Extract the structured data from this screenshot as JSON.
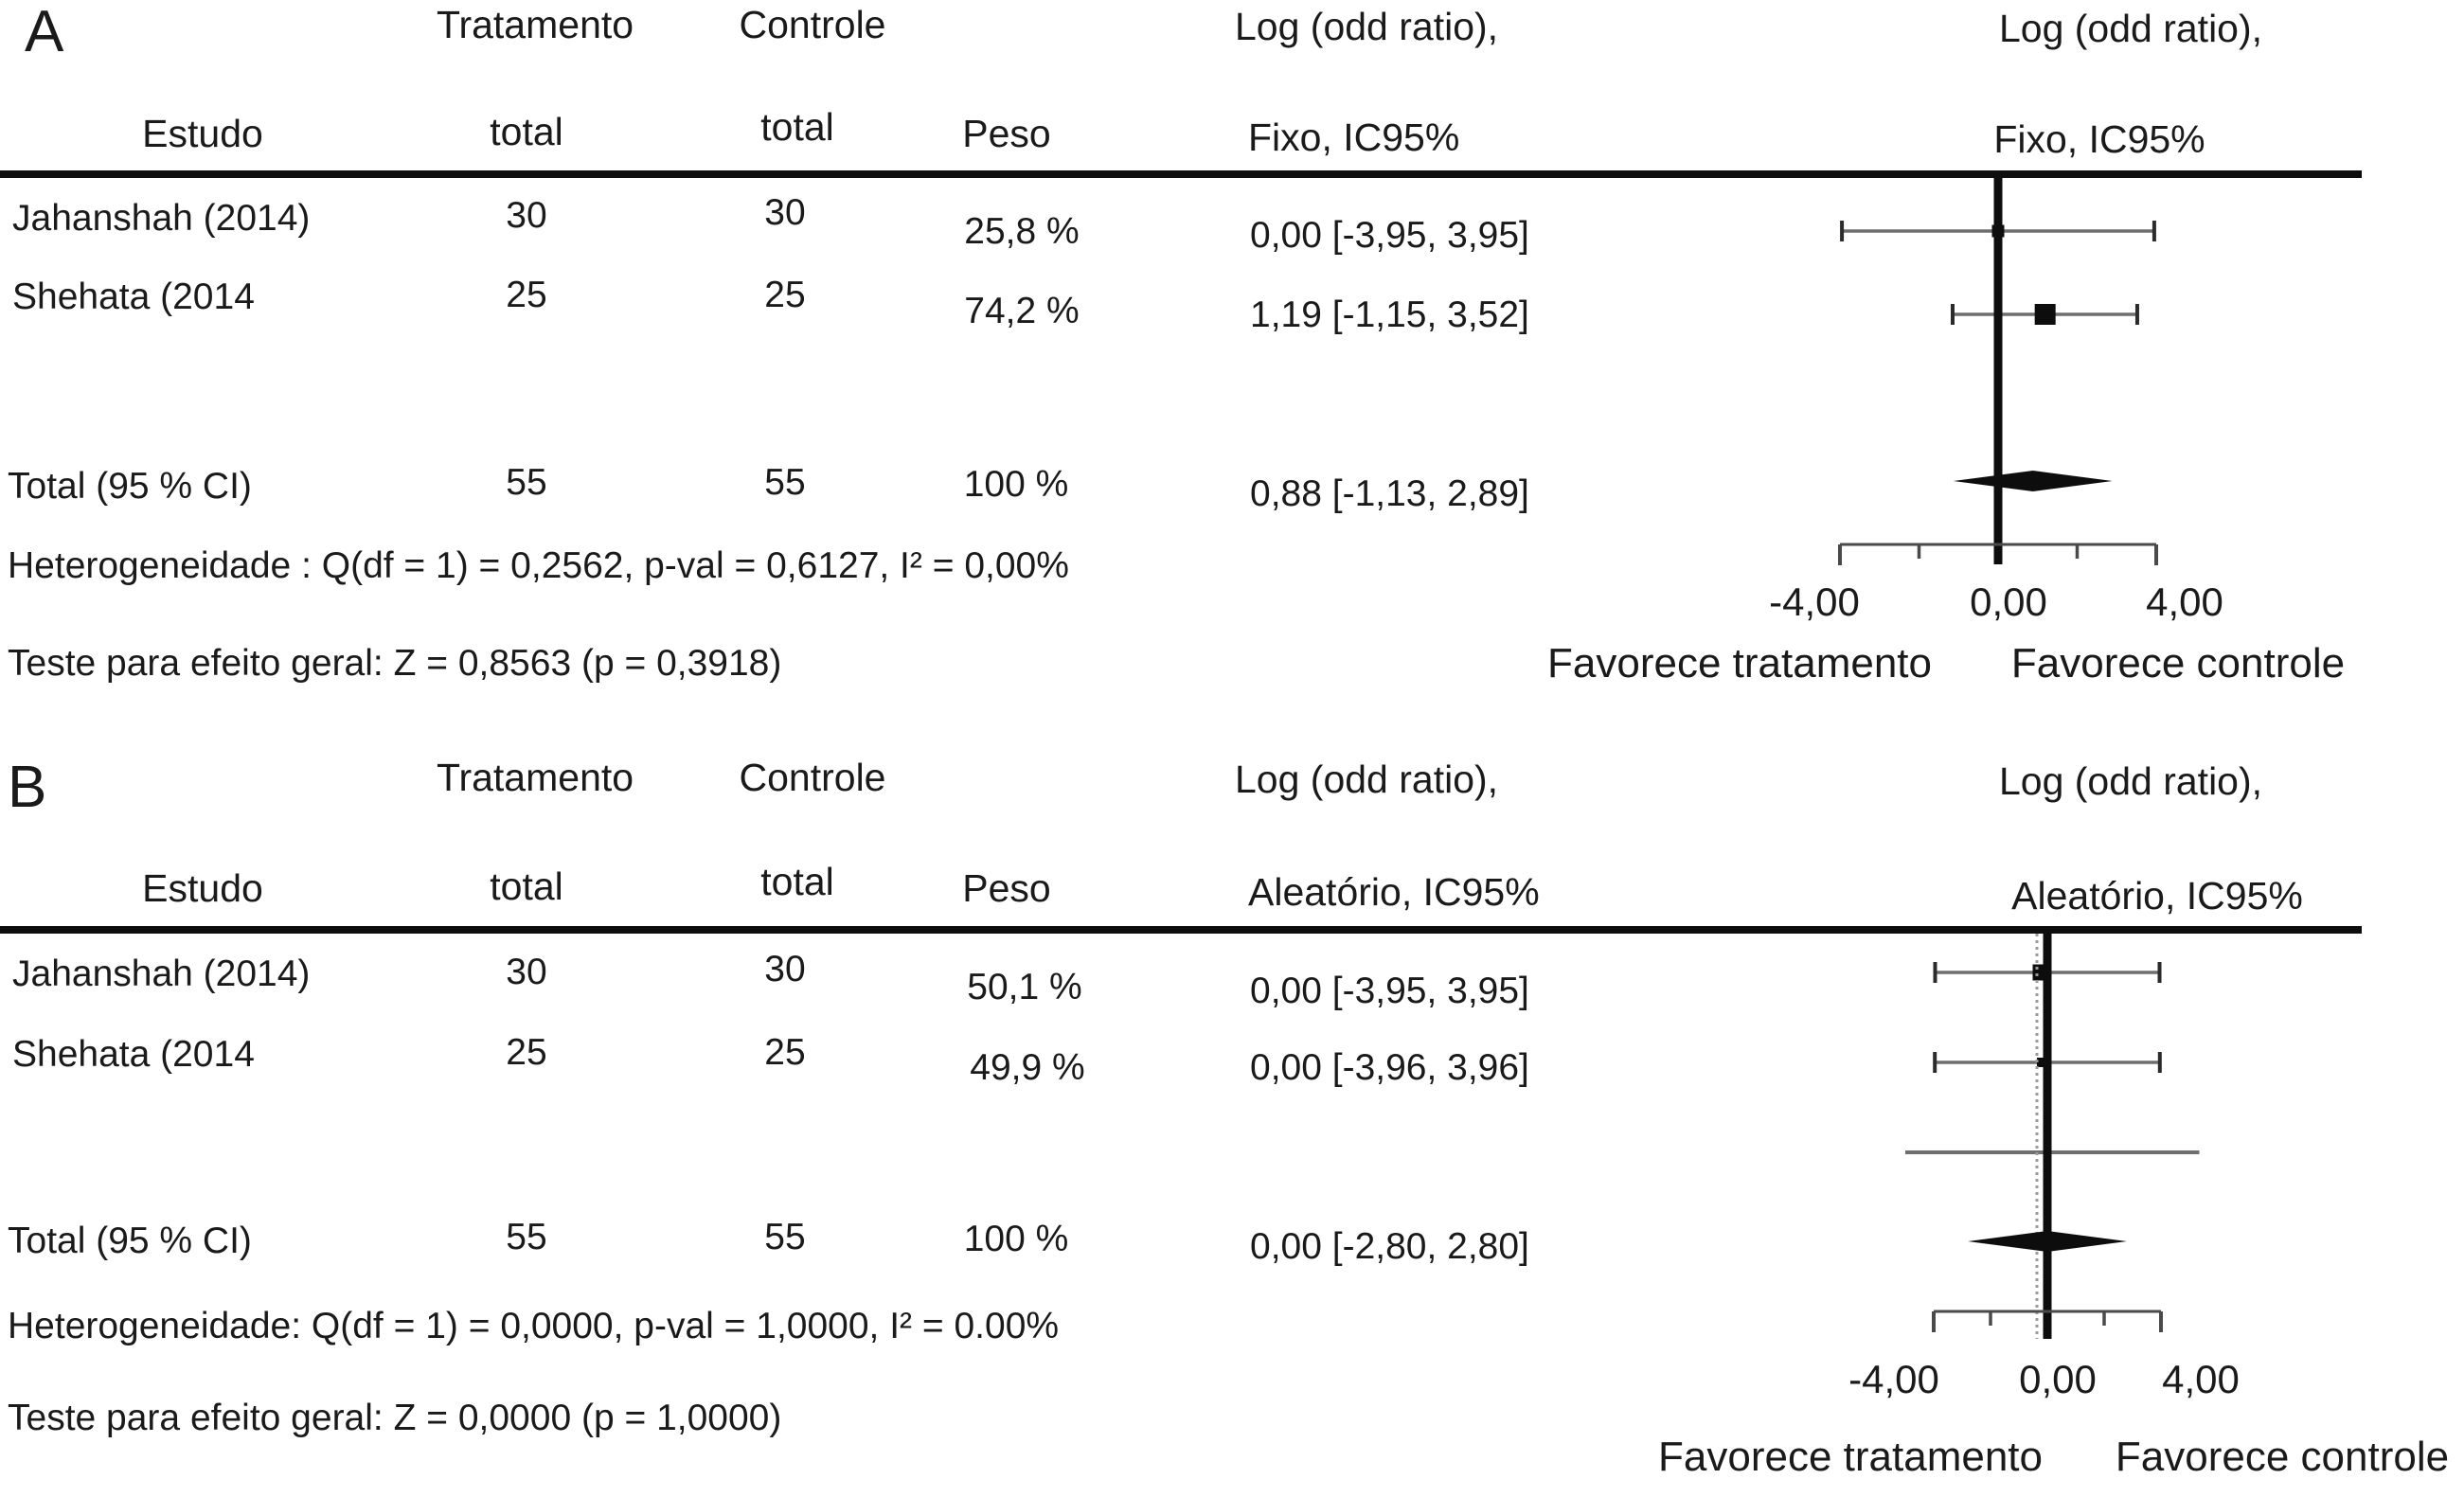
{
  "panels": [
    {
      "label": "A",
      "header": {
        "treatment": "Tratamento",
        "control": "Controle",
        "effect_left_line1": "Log (odd ratio),",
        "effect_left_line2": "Fixo, IC95%",
        "effect_plot_line1": "Log (odd ratio),",
        "effect_plot_line2": "Fixo, IC95%",
        "study": "Estudo",
        "treatment_total": "total",
        "control_total": "total",
        "weight": "Peso"
      },
      "rows": [
        {
          "study": "Jahanshah (2014)",
          "treatment_total": "30",
          "control_total": "30",
          "weight": "25,8 %",
          "ci": "0,00 [-3,95, 3,95]"
        },
        {
          "study": "Shehata (2014",
          "treatment_total": "25",
          "control_total": "25",
          "weight": "74,2 %",
          "ci": "1,19 [-1,15, 3,52]"
        }
      ],
      "total": {
        "label": "Total (95 % CI)",
        "treatment_total": "55",
        "control_total": "55",
        "weight": "100 %",
        "ci": "0,88 [-1,13, 2,89]"
      },
      "heterogeneity": "Heterogeneidade : Q(df = 1) = 0,2562, p-val = 0,6127, I² = 0,00%",
      "overall_test": "Teste para efeito geral: Z = 0,8563 (p = 0,3918)",
      "axis_ticks": [
        "-4,00",
        "0,00",
        "4,00"
      ],
      "favors_left": "Favorece tratamento",
      "favors_right": "Favorece controle"
    },
    {
      "label": "B",
      "header": {
        "treatment": "Tratamento",
        "control": "Controle",
        "effect_left_line1": "Log (odd ratio),",
        "effect_left_line2": "Aleatório, IC95%",
        "effect_plot_line1": "Log (odd ratio),",
        "effect_plot_line2": "Aleatório, IC95%",
        "study": "Estudo",
        "treatment_total": "total",
        "control_total": "total",
        "weight": "Peso"
      },
      "rows": [
        {
          "study": "Jahanshah (2014)",
          "treatment_total": "30",
          "control_total": "30",
          "weight": "50,1 %",
          "ci": "0,00 [-3,95, 3,95]"
        },
        {
          "study": "Shehata (2014",
          "treatment_total": "25",
          "control_total": "25",
          "weight": "49,9 %",
          "ci": "0,00 [-3,96, 3,96]"
        }
      ],
      "total": {
        "label": "Total (95 % CI)",
        "treatment_total": "55",
        "control_total": "55",
        "weight": "100 %",
        "ci": "0,00 [-2,80, 2,80]"
      },
      "heterogeneity": "Heterogeneidade: Q(df = 1) = 0,0000, p-val = 1,0000, I² = 0.00%",
      "overall_test": "Teste para efeito geral: Z = 0,0000 (p = 1,0000)",
      "axis_ticks": [
        "-4,00",
        "0,00",
        "4,00"
      ],
      "favors_left": "Favorece tratamento",
      "favors_right": "Favorece controle"
    }
  ],
  "chart_data": [
    {
      "type": "forest",
      "panel": "A",
      "effect_measure": "Log (odd ratio), Fixo, IC95%",
      "xlim": [
        -4.0,
        4.0
      ],
      "x_ticks_labeled": [
        -4.0,
        0.0,
        4.0
      ],
      "x_ticks_minor": [
        -2.0,
        2.0
      ],
      "zero_line": 0.0,
      "studies": [
        {
          "name": "Jahanshah (2014)",
          "treatment_total": 30,
          "control_total": 30,
          "weight_pct": 25.8,
          "estimate": 0.0,
          "ci_low": -3.95,
          "ci_high": 3.95
        },
        {
          "name": "Shehata (2014",
          "treatment_total": 25,
          "control_total": 25,
          "weight_pct": 74.2,
          "estimate": 1.19,
          "ci_low": -1.15,
          "ci_high": 3.52
        }
      ],
      "total": {
        "name": "Total (95 % CI)",
        "treatment_total": 55,
        "control_total": 55,
        "weight_pct": 100.0,
        "estimate": 0.88,
        "ci_low": -1.13,
        "ci_high": 2.89
      },
      "heterogeneity": {
        "Q": 0.2562,
        "df": 1,
        "p_val": 0.6127,
        "I2_pct": 0.0
      },
      "overall_effect": {
        "Z": 0.8563,
        "p": 0.3918
      },
      "favors": [
        "Favorece tratamento",
        "Favorece controle"
      ]
    },
    {
      "type": "forest",
      "panel": "B",
      "effect_measure": "Log (odd ratio), Aleatório, IC95%",
      "xlim": [
        -4.0,
        4.0
      ],
      "x_ticks_labeled": [
        -4.0,
        0.0,
        4.0
      ],
      "x_ticks_minor": [
        -2.0,
        2.0
      ],
      "zero_line": 0.0,
      "studies": [
        {
          "name": "Jahanshah (2014)",
          "treatment_total": 30,
          "control_total": 30,
          "weight_pct": 50.1,
          "estimate": 0.0,
          "ci_low": -3.95,
          "ci_high": 3.95
        },
        {
          "name": "Shehata (2014",
          "treatment_total": 25,
          "control_total": 25,
          "weight_pct": 49.9,
          "estimate": 0.0,
          "ci_low": -3.96,
          "ci_high": 3.96
        }
      ],
      "unlabeled_interval": {
        "estimate": 0.0,
        "ci_low": -5.0,
        "ci_high": 5.35
      },
      "total": {
        "name": "Total (95 % CI)",
        "treatment_total": 55,
        "control_total": 55,
        "weight_pct": 100.0,
        "estimate": 0.0,
        "ci_low": -2.8,
        "ci_high": 2.8
      },
      "heterogeneity": {
        "Q": 0.0,
        "df": 1,
        "p_val": 1.0,
        "I2_pct": 0.0
      },
      "overall_effect": {
        "Z": 0.0,
        "p": 1.0
      },
      "favors": [
        "Favorece tratamento",
        "Favorece controle"
      ]
    }
  ]
}
